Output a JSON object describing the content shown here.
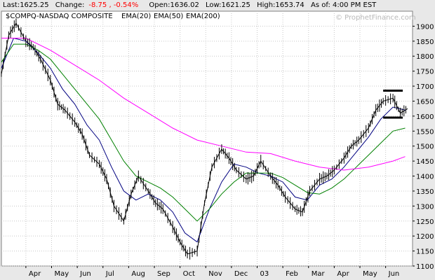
{
  "header": {
    "last": "Last:1625.25",
    "change": "Change:",
    "change_val": "-8.75 , -0.54%",
    "open": "Open:1636.02",
    "low": "Low:1621.25",
    "high": "High:1653.74",
    "asof": "As of:  4:00 PM EST"
  },
  "watermark": "© ProphetFinance.com",
  "chart_data": {
    "type": "line",
    "title": "",
    "ylim": [
      1100,
      1950
    ],
    "y_ticks": [
      1100,
      1150,
      1200,
      1250,
      1300,
      1350,
      1400,
      1450,
      1500,
      1550,
      1600,
      1650,
      1700,
      1750,
      1800,
      1850,
      1900
    ],
    "x_labels": [
      "Apr",
      "May",
      "Jun",
      "Jul",
      "Aug",
      "Sep",
      "Oct",
      "Nov",
      "Dec",
      "03",
      "Feb",
      "Mar",
      "Apr",
      "May",
      "Jun"
    ],
    "series": [
      {
        "name": "$COMPQ-NASDAQ COMPOSITE",
        "color": "#000000",
        "points": [
          [
            0,
            1740
          ],
          [
            0.3,
            1870
          ],
          [
            0.6,
            1910
          ],
          [
            1,
            1850
          ],
          [
            1.3,
            1830
          ],
          [
            1.6,
            1790
          ],
          [
            2,
            1720
          ],
          [
            2.3,
            1640
          ],
          [
            2.6,
            1620
          ],
          [
            3,
            1580
          ],
          [
            3.3,
            1540
          ],
          [
            3.6,
            1470
          ],
          [
            4,
            1440
          ],
          [
            4.3,
            1390
          ],
          [
            4.6,
            1300
          ],
          [
            5,
            1250
          ],
          [
            5.3,
            1340
          ],
          [
            5.6,
            1400
          ],
          [
            6,
            1350
          ],
          [
            6.3,
            1310
          ],
          [
            6.6,
            1290
          ],
          [
            7,
            1230
          ],
          [
            7.3,
            1180
          ],
          [
            7.6,
            1140
          ],
          [
            8,
            1150
          ],
          [
            8.3,
            1310
          ],
          [
            8.6,
            1430
          ],
          [
            9,
            1490
          ],
          [
            9.3,
            1460
          ],
          [
            9.6,
            1420
          ],
          [
            10,
            1390
          ],
          [
            10.3,
            1400
          ],
          [
            10.6,
            1450
          ],
          [
            11,
            1400
          ],
          [
            11.3,
            1370
          ],
          [
            11.6,
            1330
          ],
          [
            12,
            1290
          ],
          [
            12.3,
            1280
          ],
          [
            12.6,
            1350
          ],
          [
            13,
            1390
          ],
          [
            13.3,
            1400
          ],
          [
            13.6,
            1420
          ],
          [
            14,
            1460
          ],
          [
            14.3,
            1500
          ],
          [
            14.6,
            1520
          ],
          [
            15,
            1560
          ],
          [
            15.3,
            1620
          ],
          [
            15.6,
            1650
          ],
          [
            16,
            1660
          ],
          [
            16.3,
            1610
          ],
          [
            16.6,
            1625
          ]
        ]
      },
      {
        "name": "EMA(20)",
        "color": "#000080",
        "points": [
          [
            0,
            1760
          ],
          [
            0.5,
            1860
          ],
          [
            1,
            1850
          ],
          [
            1.5,
            1810
          ],
          [
            2,
            1760
          ],
          [
            2.5,
            1690
          ],
          [
            3,
            1640
          ],
          [
            3.5,
            1570
          ],
          [
            4,
            1520
          ],
          [
            4.5,
            1430
          ],
          [
            5,
            1350
          ],
          [
            5.5,
            1320
          ],
          [
            6,
            1340
          ],
          [
            6.5,
            1320
          ],
          [
            7,
            1280
          ],
          [
            7.5,
            1210
          ],
          [
            8,
            1180
          ],
          [
            8.5,
            1290
          ],
          [
            9,
            1380
          ],
          [
            9.5,
            1440
          ],
          [
            10,
            1430
          ],
          [
            10.5,
            1410
          ],
          [
            11,
            1400
          ],
          [
            11.5,
            1380
          ],
          [
            12,
            1330
          ],
          [
            12.5,
            1320
          ],
          [
            13,
            1370
          ],
          [
            13.5,
            1390
          ],
          [
            14,
            1430
          ],
          [
            14.5,
            1480
          ],
          [
            15,
            1530
          ],
          [
            15.5,
            1590
          ],
          [
            16,
            1630
          ],
          [
            16.5,
            1620
          ]
        ]
      },
      {
        "name": "EMA(50)",
        "color": "#008000",
        "points": [
          [
            0,
            1780
          ],
          [
            0.5,
            1840
          ],
          [
            1,
            1840
          ],
          [
            1.5,
            1820
          ],
          [
            2,
            1790
          ],
          [
            2.5,
            1740
          ],
          [
            3,
            1690
          ],
          [
            3.5,
            1640
          ],
          [
            4,
            1590
          ],
          [
            4.5,
            1520
          ],
          [
            5,
            1450
          ],
          [
            5.5,
            1400
          ],
          [
            6,
            1380
          ],
          [
            6.5,
            1360
          ],
          [
            7,
            1330
          ],
          [
            7.5,
            1290
          ],
          [
            8,
            1250
          ],
          [
            8.5,
            1290
          ],
          [
            9,
            1340
          ],
          [
            9.5,
            1380
          ],
          [
            10,
            1410
          ],
          [
            10.5,
            1410
          ],
          [
            11,
            1410
          ],
          [
            11.5,
            1395
          ],
          [
            12,
            1370
          ],
          [
            12.5,
            1345
          ],
          [
            13,
            1340
          ],
          [
            13.5,
            1360
          ],
          [
            14,
            1390
          ],
          [
            14.5,
            1430
          ],
          [
            15,
            1470
          ],
          [
            15.5,
            1510
          ],
          [
            16,
            1550
          ],
          [
            16.5,
            1560
          ]
        ]
      },
      {
        "name": "EMA(200)",
        "color": "#ff00ff",
        "points": [
          [
            0,
            1860
          ],
          [
            1,
            1860
          ],
          [
            2,
            1820
          ],
          [
            3,
            1770
          ],
          [
            4,
            1720
          ],
          [
            5,
            1660
          ],
          [
            6,
            1610
          ],
          [
            7,
            1560
          ],
          [
            8,
            1520
          ],
          [
            9,
            1500
          ],
          [
            10,
            1480
          ],
          [
            11,
            1475
          ],
          [
            12,
            1450
          ],
          [
            13,
            1430
          ],
          [
            14,
            1420
          ],
          [
            15,
            1430
          ],
          [
            16,
            1450
          ],
          [
            16.5,
            1465
          ]
        ]
      }
    ],
    "bracket": {
      "top": 1685,
      "bottom": 1595,
      "x_start": 15.6,
      "x_end": 16.4
    }
  }
}
